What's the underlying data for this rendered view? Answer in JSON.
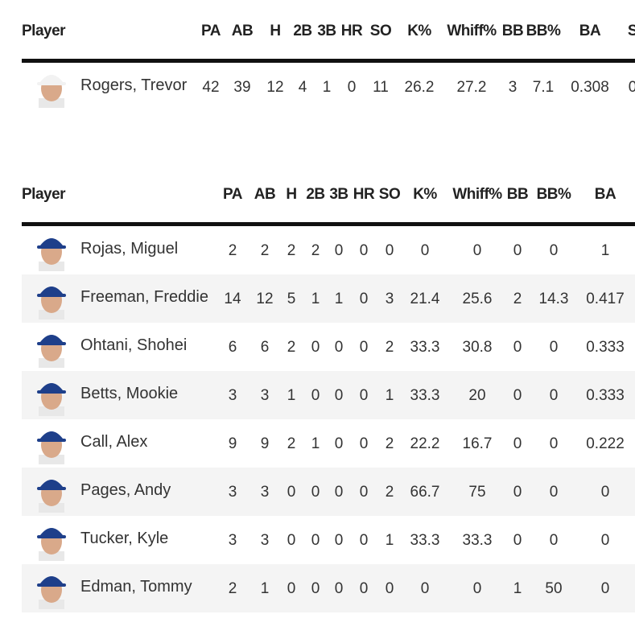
{
  "tables": [
    {
      "headers": [
        "Player",
        "PA",
        "AB",
        "H",
        "2B",
        "3B",
        "HR",
        "SO",
        "K%",
        "Whiff%",
        "BB",
        "BB%",
        "BA",
        "S"
      ],
      "rows": [
        {
          "name": "Rogers, Trevor",
          "cells": [
            "42",
            "39",
            "12",
            "4",
            "1",
            "0",
            "11",
            "26.2",
            "27.2",
            "3",
            "7.1",
            "0.308",
            "0"
          ]
        }
      ]
    },
    {
      "headers": [
        "Player",
        "PA",
        "AB",
        "H",
        "2B",
        "3B",
        "HR",
        "SO",
        "K%",
        "Whiff%",
        "BB",
        "BB%",
        "BA"
      ],
      "rows": [
        {
          "name": "Rojas, Miguel",
          "cells": [
            "2",
            "2",
            "2",
            "2",
            "0",
            "0",
            "0",
            "0",
            "0",
            "0",
            "0",
            "1"
          ]
        },
        {
          "name": "Freeman, Freddie",
          "cells": [
            "14",
            "12",
            "5",
            "1",
            "1",
            "0",
            "3",
            "21.4",
            "25.6",
            "2",
            "14.3",
            "0.417"
          ]
        },
        {
          "name": "Ohtani, Shohei",
          "cells": [
            "6",
            "6",
            "2",
            "0",
            "0",
            "0",
            "2",
            "33.3",
            "30.8",
            "0",
            "0",
            "0.333"
          ]
        },
        {
          "name": "Betts, Mookie",
          "cells": [
            "3",
            "3",
            "1",
            "0",
            "0",
            "0",
            "1",
            "33.3",
            "20",
            "0",
            "0",
            "0.333"
          ]
        },
        {
          "name": "Call, Alex",
          "cells": [
            "9",
            "9",
            "2",
            "1",
            "0",
            "0",
            "2",
            "22.2",
            "16.7",
            "0",
            "0",
            "0.222"
          ]
        },
        {
          "name": "Pages, Andy",
          "cells": [
            "3",
            "3",
            "0",
            "0",
            "0",
            "0",
            "2",
            "66.7",
            "75",
            "0",
            "0",
            "0"
          ]
        },
        {
          "name": "Tucker, Kyle",
          "cells": [
            "3",
            "3",
            "0",
            "0",
            "0",
            "0",
            "1",
            "33.3",
            "33.3",
            "0",
            "0",
            "0"
          ]
        },
        {
          "name": "Edman, Tommy",
          "cells": [
            "2",
            "1",
            "0",
            "0",
            "0",
            "0",
            "0",
            "0",
            "0",
            "1",
            "50",
            "0"
          ]
        }
      ]
    }
  ]
}
